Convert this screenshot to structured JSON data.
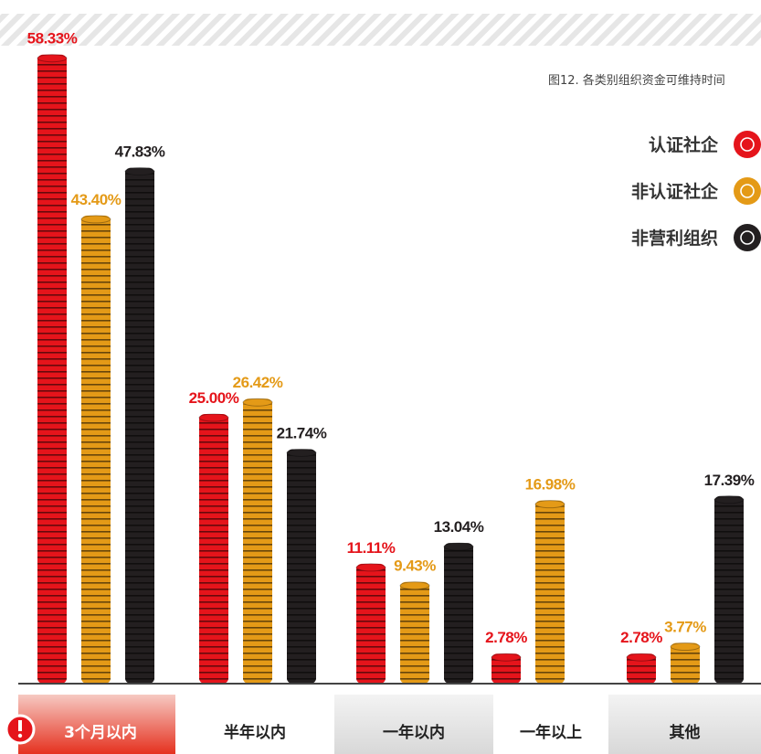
{
  "chart_data": {
    "type": "bar",
    "subtitle": "图12. 各类别组织资金可维持时间",
    "categories": [
      "3个月以内",
      "半年以内",
      "一年以内",
      "一年以上",
      "其他"
    ],
    "series": [
      {
        "name": "认证社企",
        "color": "#e5141b",
        "values": [
          58.33,
          25.0,
          11.11,
          2.78,
          2.78
        ],
        "value_labels": [
          "58.33%",
          "25.00%",
          "11.11%",
          "2.78%",
          "2.78%"
        ]
      },
      {
        "name": "非认证社企",
        "color": "#e49a17",
        "values": [
          43.4,
          26.42,
          9.43,
          16.98,
          3.77
        ],
        "value_labels": [
          "43.40%",
          "26.42%",
          "9.43%",
          "16.98%",
          "3.77%"
        ]
      },
      {
        "name": "非营利组织",
        "color": "#231f20",
        "values": [
          47.83,
          21.74,
          13.04,
          null,
          17.39
        ],
        "value_labels": [
          "47.83%",
          "21.74%",
          "13.04%",
          null,
          "17.39%"
        ]
      }
    ],
    "ylim": [
      0,
      60
    ]
  }
}
